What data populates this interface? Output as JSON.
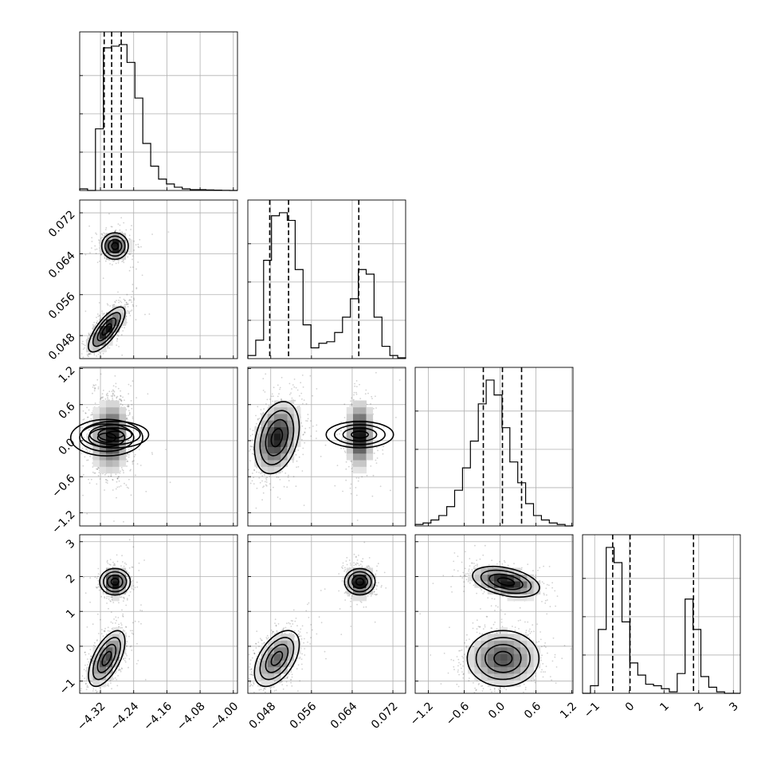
{
  "chart_data": {
    "type": "corner",
    "title": "",
    "parameters": [
      {
        "range": [
          -4.37,
          -3.99
        ],
        "ticks": [
          -4.32,
          -4.24,
          -4.16,
          -4.08,
          -4.0
        ],
        "tick_labels": [
          "−4.32",
          "−4.24",
          "−4.16",
          "−4.08",
          "−4.00"
        ],
        "quantiles": [
          -4.311,
          -4.293,
          -4.27
        ]
      },
      {
        "range": [
          0.0435,
          0.0745
        ],
        "ticks": [
          0.048,
          0.056,
          0.064,
          0.072
        ],
        "tick_labels": [
          "0.048",
          "0.056",
          "0.064",
          "0.072"
        ],
        "quantiles": [
          0.0478,
          0.0515,
          0.0653
        ]
      },
      {
        "range": [
          -1.42,
          1.22
        ],
        "ticks": [
          -1.2,
          -0.6,
          0.0,
          0.6,
          1.2
        ],
        "tick_labels": [
          "−1.2",
          "−0.6",
          "0.0",
          "0.6",
          "1.2"
        ],
        "quantiles": [
          -0.28,
          0.04,
          0.36
        ]
      },
      {
        "range": [
          -1.35,
          3.2
        ],
        "ticks": [
          -1,
          0,
          1,
          2,
          3
        ],
        "tick_labels": [
          "−1",
          "0",
          "1",
          "2",
          "3"
        ],
        "quantiles": [
          -0.48,
          0.02,
          1.85
        ]
      }
    ],
    "histograms": [
      {
        "values": [
          0.01,
          0.0,
          0.38,
          0.88,
          0.89,
          0.9,
          0.79,
          0.57,
          0.29,
          0.15,
          0.07,
          0.04,
          0.02,
          0.01,
          0.005,
          0.005,
          0.003,
          0.002,
          0.001,
          0.0
        ]
      },
      {
        "values": [
          0.02,
          0.12,
          0.64,
          0.93,
          0.95,
          0.9,
          0.58,
          0.22,
          0.07,
          0.1,
          0.11,
          0.17,
          0.27,
          0.39,
          0.58,
          0.55,
          0.27,
          0.08,
          0.02,
          0.005
        ]
      },
      {
        "values": [
          0.01,
          0.02,
          0.04,
          0.07,
          0.13,
          0.24,
          0.39,
          0.57,
          0.82,
          0.98,
          0.88,
          0.66,
          0.43,
          0.29,
          0.15,
          0.07,
          0.04,
          0.02,
          0.01,
          0.0
        ]
      },
      {
        "values": [
          0.0,
          0.05,
          0.42,
          0.96,
          0.86,
          0.47,
          0.2,
          0.12,
          0.06,
          0.05,
          0.03,
          0.01,
          0.13,
          0.62,
          0.42,
          0.11,
          0.04,
          0.01,
          0.0,
          0.0
        ]
      }
    ],
    "modes": [
      {
        "weight": 0.6,
        "mean": [
          -4.305,
          0.0492,
          0.05,
          -0.35
        ],
        "sd": [
          0.022,
          0.0022,
          0.3,
          0.4
        ],
        "corr": [
          [
            1,
            0.75,
            0,
            0.6
          ],
          [
            0.75,
            1,
            0.3,
            0.5
          ],
          [
            0,
            0.3,
            1,
            0
          ],
          [
            0.6,
            0.5,
            0,
            1
          ]
        ]
      },
      {
        "weight": 0.4,
        "mean": [
          -4.285,
          0.0655,
          0.1,
          1.85
        ],
        "sd": [
          0.016,
          0.0013,
          0.28,
          0.22
        ],
        "corr": [
          [
            1,
            0,
            0,
            0
          ],
          [
            0,
            1,
            0,
            0
          ],
          [
            0,
            0,
            1,
            -0.4
          ],
          [
            0,
            0,
            -0.4,
            1
          ]
        ]
      }
    ],
    "grid": true
  }
}
